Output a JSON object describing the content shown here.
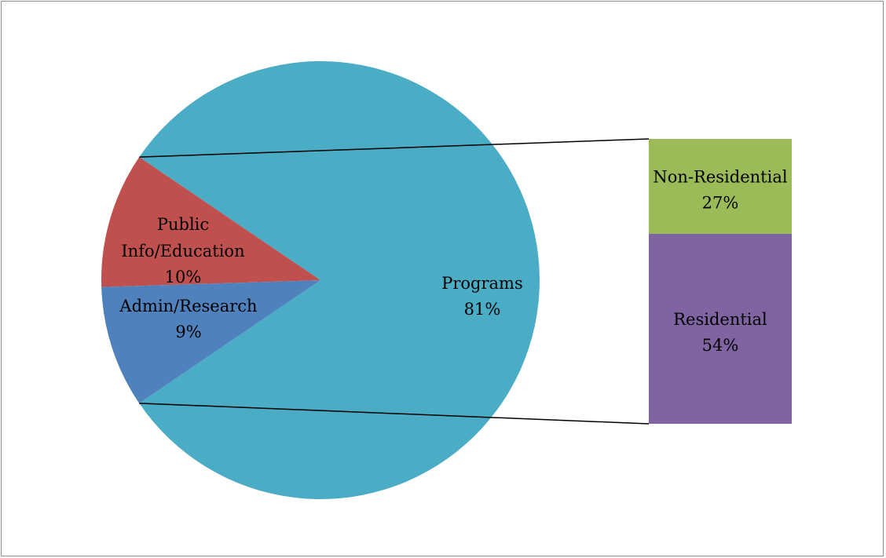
{
  "chart_data": {
    "type": "pie",
    "subtype": "bar-of-pie",
    "slices": [
      {
        "label": "Programs",
        "percent_label": "81%",
        "value": 81,
        "color": "#4bacc6"
      },
      {
        "label": "Public Info/Education",
        "label_lines": [
          "Public",
          "Info/Education"
        ],
        "percent_label": "10%",
        "value": 10,
        "color": "#c0504d"
      },
      {
        "label": "Admin/Research",
        "percent_label": "9%",
        "value": 9,
        "color": "#4f81bd"
      }
    ],
    "breakdown": {
      "of": "Programs",
      "segments": [
        {
          "label": "Non-Residential",
          "percent_label": "27%",
          "value": 27,
          "color": "#9bbb59"
        },
        {
          "label": "Residential",
          "percent_label": "54%",
          "value": 54,
          "color": "#8064a2"
        }
      ]
    },
    "legend": "none",
    "title": ""
  }
}
